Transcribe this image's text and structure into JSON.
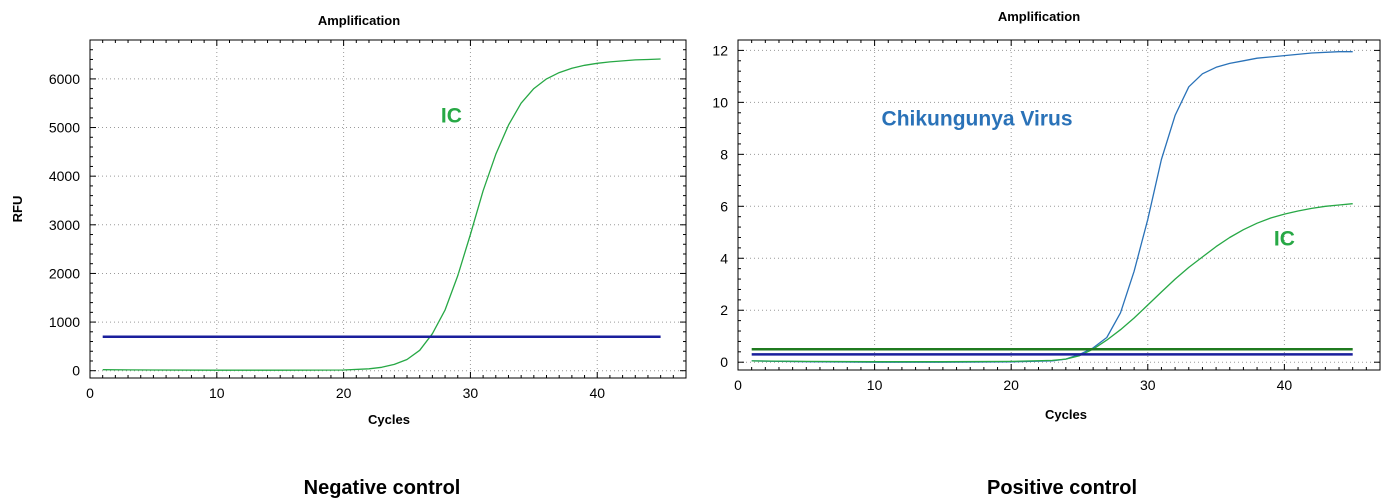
{
  "captions": [
    "Negative control",
    "Positive control"
  ],
  "chart_data": [
    {
      "type": "line",
      "title": "Amplification",
      "xlabel": "Cycles",
      "ylabel": "RFU",
      "xlim": [
        0,
        47
      ],
      "ylim": [
        -150,
        6800
      ],
      "xticks": [
        0,
        10,
        20,
        30,
        40
      ],
      "yticks": [
        0,
        1000,
        2000,
        3000,
        4000,
        5000,
        6000
      ],
      "grid": true,
      "series": [
        {
          "name": "IC",
          "color": "#27a845",
          "x": [
            1,
            5,
            10,
            15,
            20,
            22,
            23,
            24,
            25,
            26,
            27,
            28,
            29,
            30,
            31,
            32,
            33,
            34,
            35,
            36,
            37,
            38,
            39,
            40,
            41,
            42,
            43,
            44,
            45
          ],
          "y": [
            20,
            15,
            10,
            10,
            15,
            40,
            70,
            130,
            230,
            420,
            760,
            1250,
            1950,
            2800,
            3700,
            4450,
            5050,
            5500,
            5800,
            6000,
            6130,
            6220,
            6280,
            6320,
            6350,
            6370,
            6390,
            6400,
            6410
          ]
        },
        {
          "name": "",
          "color": "#1a1f9c",
          "x": [
            1,
            45
          ],
          "y": [
            700,
            700
          ]
        }
      ],
      "annotations": [
        {
          "text": "IC",
          "x": 28.5,
          "y": 5100,
          "color": "#27a845"
        }
      ]
    },
    {
      "type": "line",
      "title": "Amplification",
      "xlabel": "Cycles",
      "ylabel": "",
      "xlim": [
        0,
        47
      ],
      "ylim": [
        -0.3,
        12.4
      ],
      "xticks": [
        0,
        10,
        20,
        30,
        40
      ],
      "yticks": [
        0,
        2,
        4,
        6,
        8,
        10,
        12
      ],
      "grid": true,
      "series": [
        {
          "name": "Chikungunya Virus",
          "color": "#2a72b8",
          "x": [
            1,
            5,
            10,
            15,
            20,
            23,
            24,
            25,
            26,
            27,
            28,
            29,
            30,
            31,
            32,
            33,
            34,
            35,
            36,
            37,
            38,
            40,
            42,
            44,
            45
          ],
          "y": [
            0.05,
            0.02,
            0,
            0,
            0.01,
            0.05,
            0.12,
            0.3,
            0.55,
            0.95,
            1.9,
            3.5,
            5.5,
            7.8,
            9.5,
            10.6,
            11.1,
            11.35,
            11.5,
            11.6,
            11.7,
            11.8,
            11.9,
            11.95,
            11.95
          ]
        },
        {
          "name": "IC",
          "color": "#27a845",
          "x": [
            1,
            5,
            10,
            15,
            20,
            23,
            24,
            25,
            26,
            27,
            28,
            29,
            30,
            31,
            32,
            33,
            34,
            35,
            36,
            37,
            38,
            39,
            40,
            41,
            42,
            43,
            44,
            45
          ],
          "y": [
            0.05,
            0.03,
            0.02,
            0.02,
            0.03,
            0.07,
            0.12,
            0.25,
            0.5,
            0.85,
            1.25,
            1.7,
            2.2,
            2.7,
            3.2,
            3.65,
            4.05,
            4.45,
            4.8,
            5.1,
            5.35,
            5.55,
            5.7,
            5.82,
            5.92,
            6.0,
            6.05,
            6.1
          ]
        },
        {
          "name": "",
          "color": "#1f7a1f",
          "x": [
            1,
            45
          ],
          "y": [
            0.5,
            0.5
          ]
        },
        {
          "name": "",
          "color": "#1a1f9c",
          "x": [
            1,
            45
          ],
          "y": [
            0.3,
            0.3
          ]
        }
      ],
      "annotations": [
        {
          "text": "Chikungunya Virus",
          "x": 17.5,
          "y": 9.1,
          "color": "#2a72b8"
        },
        {
          "text": "IC",
          "x": 40,
          "y": 4.5,
          "color": "#27a845"
        }
      ]
    }
  ]
}
